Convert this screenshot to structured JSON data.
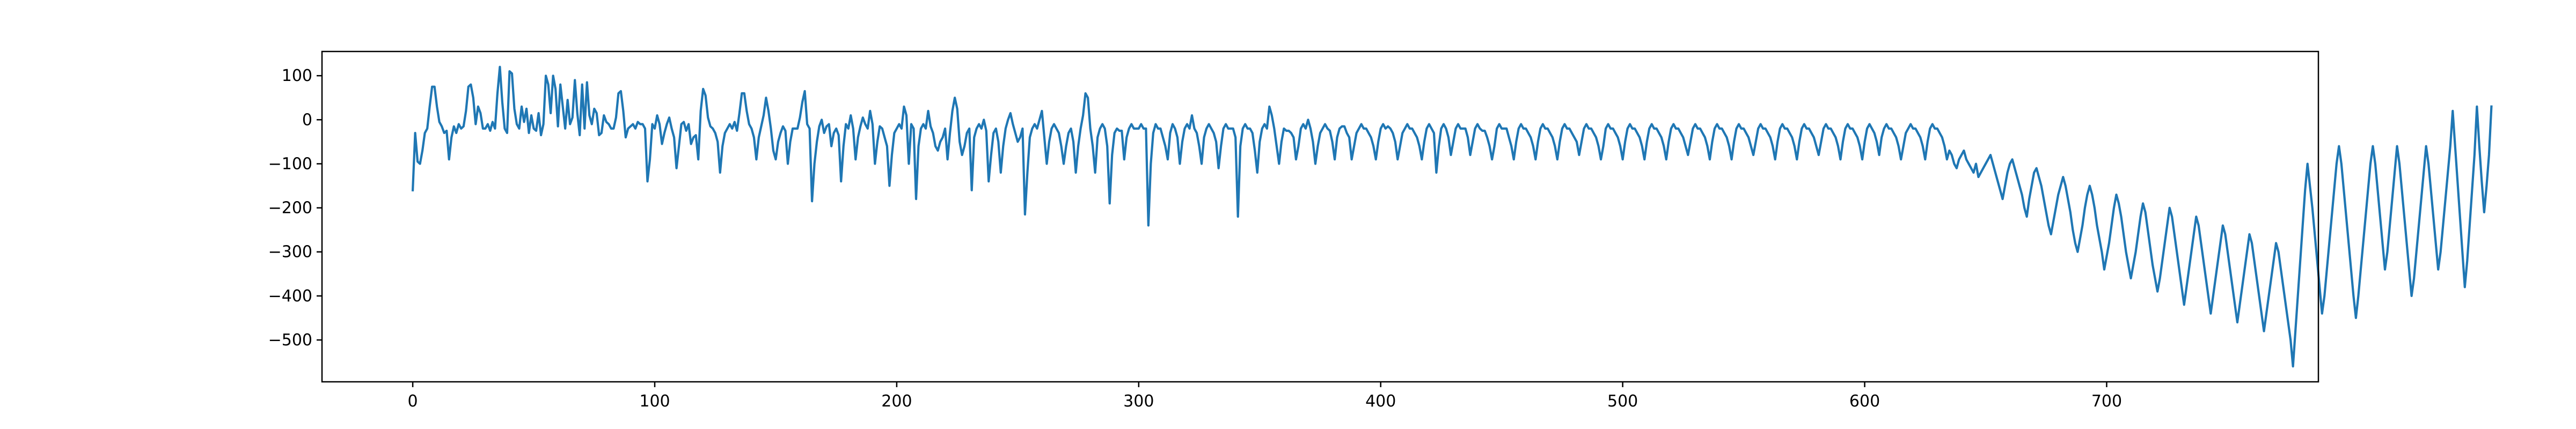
{
  "chart_data": {
    "type": "line",
    "title": "",
    "xlabel": "",
    "ylabel": "",
    "xlim": [
      -37.5,
      787.5
    ],
    "ylim": [
      -595,
      155
    ],
    "grid": false,
    "x_ticks": [
      0,
      100,
      200,
      300,
      400,
      500,
      600,
      700
    ],
    "x_tick_labels": [
      "0",
      "100",
      "200",
      "300",
      "400",
      "500",
      "600",
      "700"
    ],
    "y_ticks": [
      100,
      0,
      -100,
      -200,
      -300,
      -400,
      -500
    ],
    "y_tick_labels": [
      "100",
      "0",
      "−100",
      "−200",
      "−300",
      "−400",
      "−500"
    ],
    "series": [
      {
        "color": "#1f77b4",
        "x_start": 0,
        "x_step": 1,
        "values": [
          -160,
          -30,
          -95,
          -100,
          -70,
          -30,
          -20,
          30,
          75,
          75,
          30,
          -5,
          -15,
          -30,
          -25,
          -90,
          -40,
          -15,
          -30,
          -10,
          -20,
          -15,
          20,
          75,
          80,
          50,
          -10,
          30,
          15,
          -20,
          -20,
          -10,
          -25,
          -5,
          -20,
          60,
          120,
          40,
          -20,
          -30,
          110,
          105,
          25,
          -10,
          -20,
          30,
          -5,
          25,
          -30,
          10,
          -20,
          -25,
          15,
          -35,
          -10,
          100,
          80,
          15,
          100,
          70,
          -15,
          80,
          30,
          -20,
          45,
          -10,
          5,
          90,
          15,
          -35,
          80,
          -20,
          85,
          10,
          -10,
          25,
          15,
          -35,
          -30,
          10,
          -5,
          -10,
          -20,
          -20,
          5,
          60,
          65,
          20,
          -40,
          -20,
          -15,
          -10,
          -20,
          -5,
          -10,
          -10,
          -20,
          -140,
          -90,
          -10,
          -20,
          10,
          -10,
          -55,
          -30,
          -10,
          5,
          -20,
          -40,
          -110,
          -60,
          -10,
          -5,
          -25,
          -10,
          -55,
          -40,
          -35,
          -90,
          20,
          70,
          55,
          5,
          -15,
          -20,
          -30,
          -50,
          -120,
          -60,
          -30,
          -20,
          -10,
          -20,
          -5,
          -25,
          15,
          60,
          60,
          20,
          -10,
          -20,
          -40,
          -90,
          -40,
          -15,
          10,
          50,
          20,
          -20,
          -70,
          -90,
          -50,
          -30,
          -15,
          -25,
          -100,
          -50,
          -20,
          -20,
          -20,
          5,
          40,
          65,
          -10,
          -20,
          -185,
          -100,
          -50,
          -15,
          0,
          -30,
          -15,
          -10,
          -60,
          -30,
          -20,
          -35,
          -140,
          -60,
          -10,
          -20,
          10,
          -20,
          -90,
          -40,
          -15,
          5,
          -10,
          -20,
          20,
          -10,
          -100,
          -50,
          -15,
          -20,
          -40,
          -60,
          -150,
          -80,
          -30,
          -20,
          -10,
          -20,
          30,
          10,
          -100,
          -10,
          -20,
          -180,
          -60,
          -20,
          -10,
          -20,
          20,
          -15,
          -30,
          -60,
          -70,
          -50,
          -40,
          -20,
          -90,
          -30,
          20,
          50,
          25,
          -50,
          -80,
          -60,
          -30,
          -20,
          -160,
          -40,
          -20,
          -10,
          -20,
          0,
          -25,
          -140,
          -80,
          -30,
          -20,
          -50,
          -120,
          -60,
          -20,
          0,
          15,
          -10,
          -30,
          -50,
          -40,
          -20,
          -215,
          -120,
          -40,
          -20,
          -10,
          -20,
          0,
          20,
          -40,
          -100,
          -50,
          -20,
          -10,
          -20,
          -30,
          -60,
          -100,
          -60,
          -30,
          -20,
          -50,
          -120,
          -60,
          -20,
          10,
          60,
          50,
          -20,
          -60,
          -120,
          -40,
          -20,
          -10,
          -20,
          -60,
          -190,
          -80,
          -30,
          -20,
          -25,
          -25,
          -90,
          -40,
          -20,
          -10,
          -20,
          -20,
          -20,
          -10,
          -20,
          -20,
          -240,
          -100,
          -30,
          -10,
          -20,
          -20,
          -40,
          -60,
          -90,
          -30,
          -10,
          -20,
          -40,
          -100,
          -50,
          -20,
          -10,
          -20,
          10,
          -20,
          -30,
          -60,
          -100,
          -40,
          -20,
          -10,
          -20,
          -30,
          -50,
          -110,
          -60,
          -20,
          -10,
          -20,
          -20,
          -20,
          -40,
          -220,
          -60,
          -20,
          -10,
          -20,
          -20,
          -30,
          -70,
          -120,
          -50,
          -20,
          -10,
          -20,
          30,
          10,
          -20,
          -60,
          -100,
          -50,
          -20,
          -25,
          -25,
          -30,
          -40,
          -90,
          -60,
          -20,
          -10,
          -20,
          0,
          -20,
          -50,
          -100,
          -60,
          -30,
          -20,
          -10,
          -20,
          -25,
          -50,
          -90,
          -40,
          -20,
          -15,
          -15,
          -30,
          -40,
          -90,
          -60,
          -30,
          -20,
          -10,
          -20,
          -20,
          -30,
          -40,
          -60,
          -90,
          -50,
          -20,
          -10,
          -20,
          -15,
          -20,
          -30,
          -50,
          -90,
          -60,
          -30,
          -20,
          -10,
          -20,
          -20,
          -30,
          -40,
          -60,
          -90,
          -50,
          -20,
          -10,
          -20,
          -30,
          -120,
          -60,
          -20,
          -10,
          -20,
          -40,
          -80,
          -50,
          -20,
          -10,
          -20,
          -20,
          -20,
          -40,
          -80,
          -50,
          -20,
          -10,
          -20,
          -25,
          -25,
          -40,
          -60,
          -90,
          -60,
          -20,
          -10,
          -20,
          -20,
          -20,
          -40,
          -60,
          -90,
          -50,
          -20,
          -10,
          -20,
          -20,
          -30,
          -40,
          -60,
          -90,
          -50,
          -20,
          -10,
          -20,
          -20,
          -30,
          -40,
          -60,
          -90,
          -50,
          -20,
          -10,
          -20,
          -20,
          -30,
          -40,
          -50,
          -80,
          -50,
          -20,
          -10,
          -20,
          -20,
          -30,
          -40,
          -60,
          -90,
          -60,
          -20,
          -10,
          -20,
          -20,
          -30,
          -40,
          -60,
          -90,
          -50,
          -20,
          -10,
          -20,
          -20,
          -30,
          -40,
          -60,
          -90,
          -50,
          -20,
          -10,
          -20,
          -20,
          -30,
          -40,
          -60,
          -90,
          -50,
          -20,
          -10,
          -20,
          -20,
          -30,
          -40,
          -60,
          -80,
          -50,
          -20,
          -10,
          -20,
          -20,
          -30,
          -40,
          -60,
          -90,
          -50,
          -20,
          -10,
          -20,
          -20,
          -30,
          -40,
          -60,
          -90,
          -50,
          -20,
          -10,
          -20,
          -20,
          -30,
          -40,
          -60,
          -80,
          -50,
          -20,
          -10,
          -20,
          -20,
          -30,
          -40,
          -60,
          -90,
          -50,
          -20,
          -10,
          -20,
          -20,
          -30,
          -40,
          -60,
          -90,
          -50,
          -20,
          -10,
          -20,
          -20,
          -30,
          -40,
          -60,
          -80,
          -50,
          -20,
          -10,
          -20,
          -20,
          -30,
          -40,
          -60,
          -90,
          -50,
          -20,
          -10,
          -20,
          -20,
          -30,
          -40,
          -60,
          -90,
          -50,
          -20,
          -10,
          -20,
          -30,
          -50,
          -80,
          -40,
          -20,
          -10,
          -20,
          -20,
          -30,
          -40,
          -60,
          -90,
          -60,
          -30,
          -20,
          -10,
          -20,
          -20,
          -30,
          -40,
          -60,
          -90,
          -50,
          -20,
          -10,
          -20,
          -20,
          -30,
          -40,
          -60,
          -90,
          -70,
          -80,
          -100,
          -110,
          -90,
          -80,
          -70,
          -90,
          -100,
          -110,
          -120,
          -100,
          -130,
          -120,
          -110,
          -100,
          -90,
          -80,
          -100,
          -120,
          -140,
          -160,
          -180,
          -150,
          -120,
          -100,
          -90,
          -110,
          -130,
          -150,
          -170,
          -200,
          -220,
          -180,
          -150,
          -120,
          -110,
          -130,
          -150,
          -180,
          -210,
          -240,
          -260,
          -230,
          -200,
          -170,
          -150,
          -130,
          -150,
          -180,
          -210,
          -250,
          -280,
          -300,
          -270,
          -240,
          -200,
          -170,
          -150,
          -170,
          -200,
          -240,
          -270,
          -300,
          -340,
          -310,
          -280,
          -240,
          -200,
          -170,
          -190,
          -220,
          -260,
          -300,
          -330,
          -360,
          -330,
          -300,
          -260,
          -220,
          -190,
          -210,
          -250,
          -290,
          -330,
          -360,
          -390,
          -360,
          -320,
          -280,
          -240,
          -200,
          -220,
          -260,
          -300,
          -340,
          -380,
          -420,
          -380,
          -340,
          -300,
          -260,
          -220,
          -240,
          -280,
          -320,
          -360,
          -400,
          -440,
          -400,
          -360,
          -320,
          -280,
          -240,
          -260,
          -300,
          -340,
          -380,
          -420,
          -460,
          -420,
          -380,
          -340,
          -300,
          -260,
          -280,
          -320,
          -360,
          -400,
          -440,
          -480,
          -440,
          -400,
          -360,
          -320,
          -280,
          -300,
          -340,
          -380,
          -420,
          -460,
          -500,
          -560,
          -480,
          -400,
          -320,
          -240,
          -160,
          -100,
          -150,
          -200,
          -260,
          -320,
          -380,
          -440,
          -400,
          -340,
          -280,
          -220,
          -160,
          -100,
          -60,
          -100,
          -160,
          -220,
          -280,
          -340,
          -400,
          -450,
          -400,
          -340,
          -280,
          -220,
          -160,
          -100,
          -60,
          -100,
          -160,
          -220,
          -280,
          -340,
          -300,
          -240,
          -180,
          -120,
          -60,
          -100,
          -160,
          -220,
          -280,
          -340,
          -400,
          -360,
          -300,
          -240,
          -180,
          -120,
          -60,
          -100,
          -160,
          -220,
          -280,
          -340,
          -300,
          -240,
          -180,
          -120,
          -60,
          20,
          -60,
          -140,
          -220,
          -300,
          -380,
          -320,
          -240,
          -160,
          -80,
          30,
          -60,
          -140,
          -210,
          -150,
          -80,
          30
        ]
      }
    ]
  }
}
